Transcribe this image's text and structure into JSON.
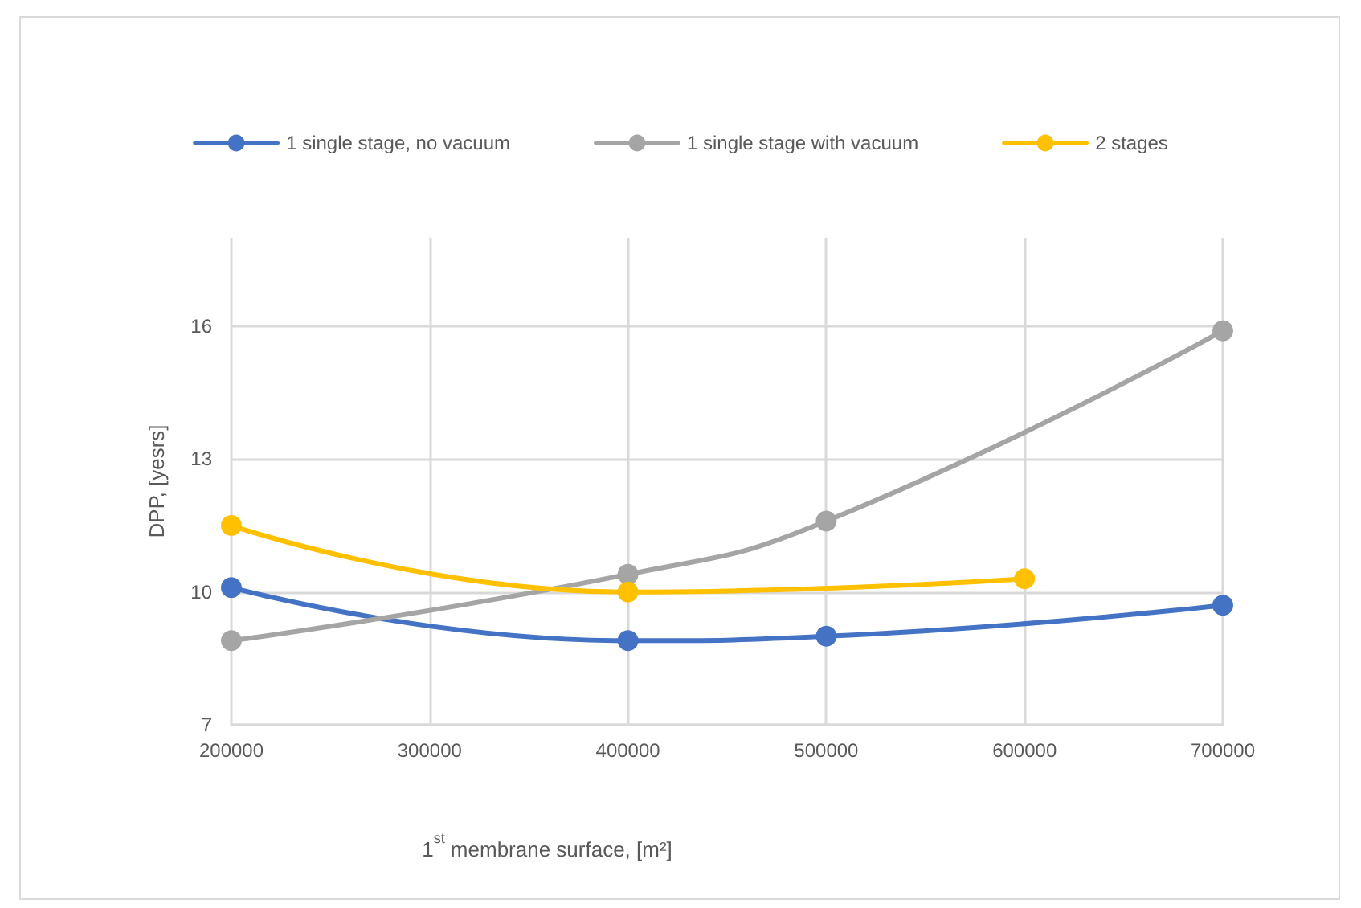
{
  "chart_data": {
    "type": "line",
    "xlabel": "1$^{st}$ membrane surface, [m²]",
    "ylabel": "DPP, [yesrs]",
    "xlim": [
      200000,
      700000
    ],
    "xticks": [
      200000,
      300000,
      400000,
      500000,
      600000,
      700000
    ],
    "ylim": [
      7,
      18
    ],
    "yticks": [
      7,
      10,
      13,
      16
    ],
    "grid": true,
    "legend": "top",
    "marker": "circle",
    "line_style": "solid",
    "series": [
      {
        "name": "1 single stage, no vacuum",
        "color": "#4472c4",
        "x": [
          200000,
          400000,
          500000,
          700000
        ],
        "values": [
          10.1,
          8.9,
          9.0,
          9.7
        ]
      },
      {
        "name": "1 single stage with vacuum",
        "color": "#a5a5a5",
        "x": [
          200000,
          400000,
          500000,
          700000
        ],
        "values": [
          8.9,
          10.4,
          11.6,
          15.9
        ]
      },
      {
        "name": "2 stages",
        "color": "#ffc000",
        "x": [
          200000,
          400000,
          600000
        ],
        "values": [
          11.5,
          10.0,
          10.3
        ]
      }
    ]
  }
}
